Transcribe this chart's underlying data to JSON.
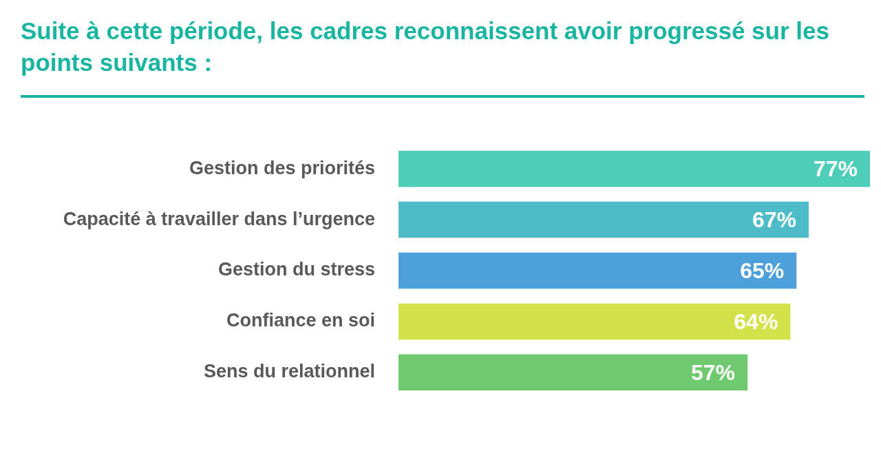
{
  "chart_data": {
    "type": "bar",
    "orientation": "horizontal",
    "title": "Suite à cette période, les cadres reconnaissent avoir progressé sur les points suivants :",
    "categories": [
      "Gestion des priorités",
      "Capacité à travailler dans l’urgence",
      "Gestion du stress",
      "Confiance en soi",
      "Sens du relationnel"
    ],
    "values": [
      77,
      67,
      65,
      64,
      57
    ],
    "colors": [
      "#4ecdb8",
      "#4dbcc8",
      "#4ea0da",
      "#d3e24b",
      "#6fc96f"
    ],
    "data_labels": true,
    "value_labels": [
      "77%",
      "67%",
      "65%",
      "64%",
      "57%"
    ],
    "grid": false,
    "legend": false
  }
}
